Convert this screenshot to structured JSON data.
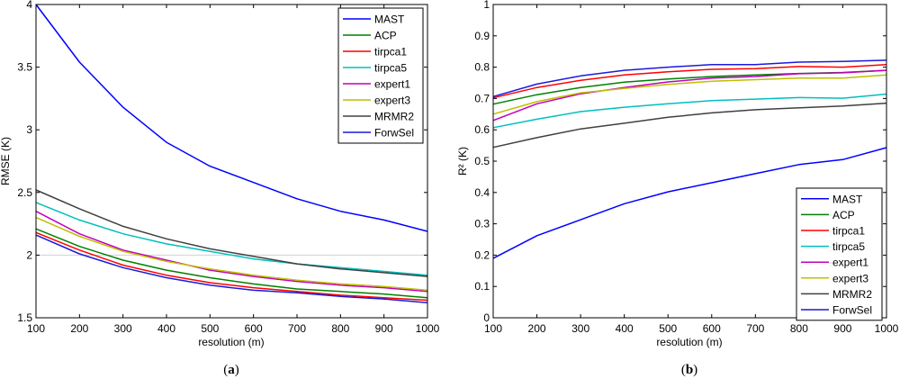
{
  "colors": {
    "MAST": "#0000ff",
    "ACP": "#008000",
    "tirpca1": "#ff0000",
    "tirpca5": "#00bfbf",
    "expert1": "#bf00bf",
    "expert3": "#bfbf00",
    "MRMR2": "#404040",
    "ForwSel": "#1a1adc"
  },
  "chart_data": [
    {
      "type": "line",
      "panel_label": {
        "open": "(",
        "letter": "a",
        "close": ")"
      },
      "xlabel": "resolution (m)",
      "ylabel": "RMSE (K)",
      "xlim": [
        100,
        1000
      ],
      "ylim": [
        1.5,
        4
      ],
      "xticks": [
        "100",
        "200",
        "300",
        "400",
        "500",
        "600",
        "700",
        "800",
        "900",
        "1000"
      ],
      "yticks": [
        "1.5",
        "2",
        "2.5",
        "3",
        "3.5",
        "4"
      ],
      "legend_position": "top-right",
      "x": [
        100,
        200,
        300,
        400,
        500,
        600,
        700,
        800,
        900,
        1000
      ],
      "series": [
        {
          "name": "MAST",
          "values": [
            4.0,
            3.54,
            3.18,
            2.9,
            2.71,
            2.58,
            2.45,
            2.35,
            2.28,
            2.19
          ]
        },
        {
          "name": "ACP",
          "values": [
            2.21,
            2.07,
            1.96,
            1.88,
            1.82,
            1.77,
            1.73,
            1.71,
            1.69,
            1.66
          ]
        },
        {
          "name": "tirpca1",
          "values": [
            2.18,
            2.04,
            1.92,
            1.84,
            1.78,
            1.74,
            1.71,
            1.68,
            1.66,
            1.64
          ]
        },
        {
          "name": "tirpca5",
          "values": [
            2.42,
            2.28,
            2.17,
            2.09,
            2.03,
            1.97,
            1.93,
            1.9,
            1.87,
            1.84
          ]
        },
        {
          "name": "expert1",
          "values": [
            2.35,
            2.17,
            2.04,
            1.96,
            1.88,
            1.83,
            1.79,
            1.76,
            1.74,
            1.71
          ]
        },
        {
          "name": "expert3",
          "values": [
            2.3,
            2.15,
            2.03,
            1.95,
            1.89,
            1.84,
            1.8,
            1.77,
            1.75,
            1.72
          ]
        },
        {
          "name": "MRMR2",
          "values": [
            2.52,
            2.37,
            2.23,
            2.13,
            2.05,
            1.99,
            1.93,
            1.89,
            1.86,
            1.83
          ]
        },
        {
          "name": "ForwSel",
          "values": [
            2.16,
            2.01,
            1.9,
            1.82,
            1.76,
            1.72,
            1.7,
            1.67,
            1.65,
            1.62
          ]
        }
      ]
    },
    {
      "type": "line",
      "panel_label": {
        "open": "(",
        "letter": "b",
        "close": ")"
      },
      "xlabel": "resolution (m)",
      "ylabel": "R² (K)",
      "xlim": [
        100,
        1000
      ],
      "ylim": [
        0,
        1
      ],
      "xticks": [
        "100",
        "200",
        "300",
        "400",
        "500",
        "600",
        "700",
        "800",
        "900",
        "1000"
      ],
      "yticks": [
        "0",
        "0.1",
        "0.2",
        "0.3",
        "0.4",
        "0.5",
        "0.6",
        "0.7",
        "0.8",
        "0.9",
        "1"
      ],
      "legend_position": "bottom-right",
      "x": [
        100,
        200,
        300,
        400,
        500,
        600,
        700,
        800,
        900,
        1000
      ],
      "series": [
        {
          "name": "MAST",
          "values": [
            0.19,
            0.262,
            0.313,
            0.364,
            0.402,
            0.431,
            0.46,
            0.489,
            0.505,
            0.543
          ]
        },
        {
          "name": "ACP",
          "values": [
            0.682,
            0.712,
            0.735,
            0.752,
            0.762,
            0.77,
            0.775,
            0.78,
            0.783,
            0.79
          ]
        },
        {
          "name": "tirpca1",
          "values": [
            0.702,
            0.735,
            0.758,
            0.775,
            0.785,
            0.793,
            0.795,
            0.802,
            0.8,
            0.808
          ]
        },
        {
          "name": "tirpca5",
          "values": [
            0.607,
            0.634,
            0.658,
            0.672,
            0.683,
            0.693,
            0.698,
            0.703,
            0.701,
            0.714
          ]
        },
        {
          "name": "expert1",
          "values": [
            0.63,
            0.683,
            0.715,
            0.735,
            0.753,
            0.765,
            0.77,
            0.779,
            0.782,
            0.79
          ]
        },
        {
          "name": "expert3",
          "values": [
            0.65,
            0.69,
            0.718,
            0.732,
            0.745,
            0.755,
            0.76,
            0.765,
            0.765,
            0.775
          ]
        },
        {
          "name": "MRMR2",
          "values": [
            0.544,
            0.575,
            0.603,
            0.621,
            0.64,
            0.654,
            0.664,
            0.67,
            0.676,
            0.685
          ]
        },
        {
          "name": "ForwSel",
          "values": [
            0.706,
            0.746,
            0.772,
            0.79,
            0.8,
            0.808,
            0.808,
            0.816,
            0.818,
            0.822
          ]
        }
      ]
    }
  ]
}
